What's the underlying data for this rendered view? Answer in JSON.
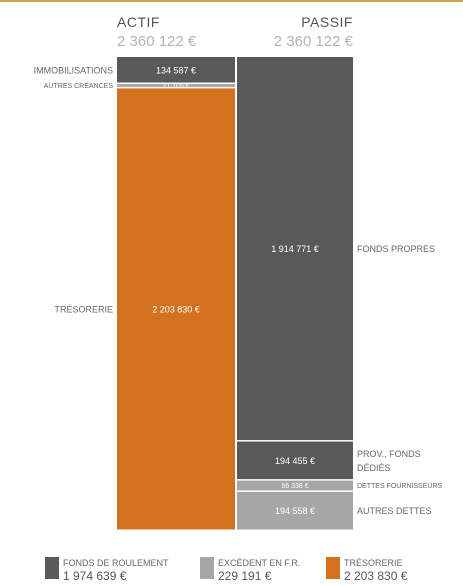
{
  "chart_data": {
    "type": "bar",
    "columns": [
      {
        "title": "ACTIF",
        "total": "2 360 122 €",
        "segments": [
          {
            "label": "IMMOBILISATIONS",
            "value": 134587,
            "value_label": "134 587 €",
            "color": "#595959"
          },
          {
            "label": "AUTRES CRÉANCES",
            "value": 21705,
            "value_label": "21 705 €",
            "color": "#a6a6a6"
          },
          {
            "label": "TRÉSORERIE",
            "value": 2203830,
            "value_label": "2 203 830 €",
            "color": "#d4711f"
          }
        ]
      },
      {
        "title": "PASSIF",
        "total": "2 360 122 €",
        "segments": [
          {
            "label": "FONDS PROPRES",
            "value": 1914771,
            "value_label": "1 914 771 €",
            "color": "#595959"
          },
          {
            "label": "PROV., FONDS DÉDIÉS",
            "label_lines": [
              "PROV., FONDS",
              "DÉDIÉS"
            ],
            "value": 194455,
            "value_label": "194 455 €",
            "color": "#595959"
          },
          {
            "label": "DETTES FOURNISSEURS",
            "value": 56338,
            "value_label": "56 338 €",
            "color": "#a6a6a6"
          },
          {
            "label": "AUTRES DETTES",
            "value": 194558,
            "value_label": "194 558 €",
            "color": "#a6a6a6"
          }
        ]
      }
    ],
    "legend": [
      {
        "label": "FONDS DE ROULEMENT",
        "value": "1 974 639 €",
        "color": "#595959"
      },
      {
        "label": "EXCÉDENT EN F.R.",
        "value": "229 191 €",
        "color": "#a6a6a6"
      },
      {
        "label": "TRÉSORERIE",
        "value": "2 203 830 €",
        "color": "#d4711f"
      }
    ]
  }
}
